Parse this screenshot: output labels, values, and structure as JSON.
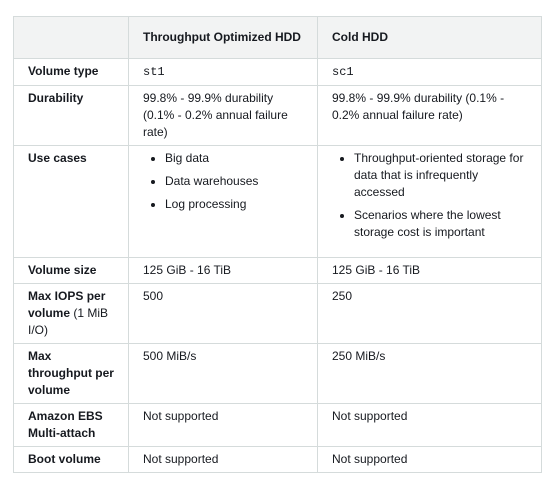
{
  "table": {
    "columns": [
      "Throughput Optimized HDD",
      "Cold HDD"
    ],
    "rows": [
      {
        "label": "Volume type",
        "cells": [
          "st1",
          "sc1"
        ],
        "code": true
      },
      {
        "label": "Durability",
        "cells": [
          "99.8% - 99.9% durability (0.1% - 0.2% annual failure rate)",
          "99.8% - 99.9% durability (0.1% - 0.2% annual failure rate)"
        ]
      },
      {
        "label": "Use cases",
        "cells": [
          [
            "Big data",
            "Data warehouses",
            "Log processing"
          ],
          [
            "Throughput-oriented storage for data that is infrequently accessed",
            "Scenarios where the lowest storage cost is important"
          ]
        ]
      },
      {
        "label": "Volume size",
        "cells": [
          "125 GiB - 16 TiB",
          "125 GiB - 16 TiB"
        ]
      },
      {
        "label": "Max IOPS per volume",
        "note": "(1 MiB I/O)",
        "cells": [
          "500",
          "250"
        ]
      },
      {
        "label": "Max throughput per volume",
        "cells": [
          "500 MiB/s",
          "250 MiB/s"
        ]
      },
      {
        "label": "Amazon EBS Multi-attach",
        "cells": [
          "Not supported",
          "Not supported"
        ]
      },
      {
        "label": "Boot volume",
        "cells": [
          "Not supported",
          "Not supported"
        ]
      }
    ]
  }
}
